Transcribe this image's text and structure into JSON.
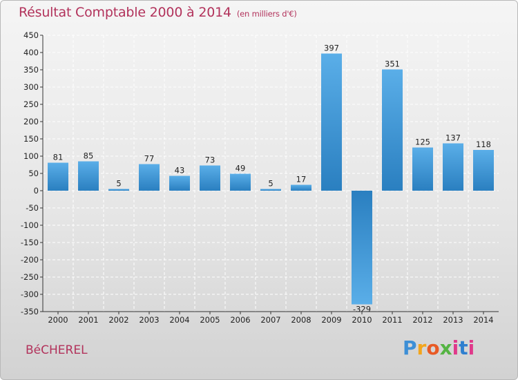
{
  "title": "Résultat Comptable 2000 à 2014",
  "unit": "(en milliers d'€)",
  "commune": "BéCHEREL",
  "brand": [
    "P",
    "r",
    "o",
    "x",
    "i",
    "t",
    "i"
  ],
  "colors": {
    "bar_light": "#5aaee8",
    "bar_dark": "#2a7fc0",
    "grid": "#ffffff",
    "title": "#b2325b"
  },
  "chart_data": {
    "type": "bar",
    "categories": [
      "2000",
      "2001",
      "2002",
      "2003",
      "2004",
      "2005",
      "2006",
      "2007",
      "2008",
      "2009",
      "2010",
      "2011",
      "2012",
      "2013",
      "2014"
    ],
    "values": [
      81,
      85,
      5,
      77,
      43,
      73,
      49,
      5,
      17,
      397,
      -329,
      351,
      125,
      137,
      118
    ],
    "labels": [
      "81",
      "85",
      "5",
      "77",
      "43",
      "73",
      "49",
      "5",
      "17",
      "397",
      "-329",
      "351",
      "125",
      "137",
      "118"
    ],
    "ylim": [
      -350,
      450
    ],
    "yticks": [
      -350,
      -300,
      -250,
      -200,
      -150,
      -100,
      -50,
      0,
      50,
      100,
      150,
      200,
      250,
      300,
      350,
      400,
      450
    ],
    "grid": "dashed"
  }
}
